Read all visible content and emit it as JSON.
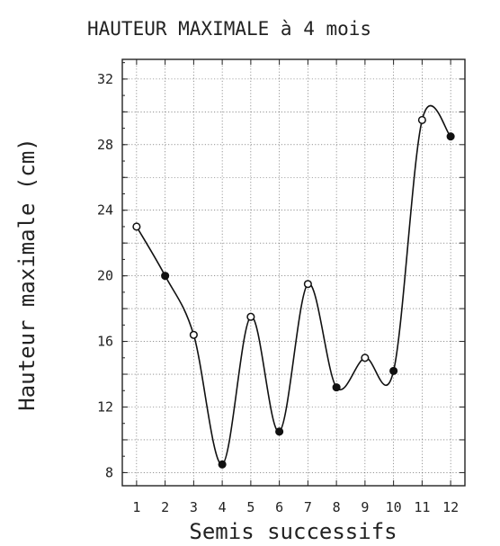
{
  "chart_data": {
    "type": "line",
    "title": "HAUTEUR MAXIMALE à 4 mois",
    "xlabel": "Semis successifs",
    "ylabel": "Hauteur maximale (cm)",
    "x": [
      1,
      2,
      3,
      4,
      5,
      6,
      7,
      8,
      9,
      10,
      11,
      12
    ],
    "xlim": [
      0.5,
      12.5
    ],
    "ylim": [
      7.2,
      33.2
    ],
    "x_ticks": [
      "1",
      "2",
      "3",
      "4",
      "5",
      "6",
      "7",
      "8",
      "9",
      "10",
      "11",
      "12"
    ],
    "y_ticks": [
      "8",
      "12",
      "16",
      "20",
      "24",
      "28",
      "32"
    ],
    "grid": true,
    "series": [
      {
        "values": [
          23.0,
          20.0,
          16.4,
          8.5,
          17.5,
          10.5,
          19.5,
          13.2,
          15.0,
          14.2,
          29.5,
          28.5
        ],
        "markers": [
          "open",
          "filled",
          "open",
          "filled",
          "open",
          "filled",
          "open",
          "filled",
          "open",
          "filled",
          "open",
          "filled"
        ]
      }
    ]
  }
}
